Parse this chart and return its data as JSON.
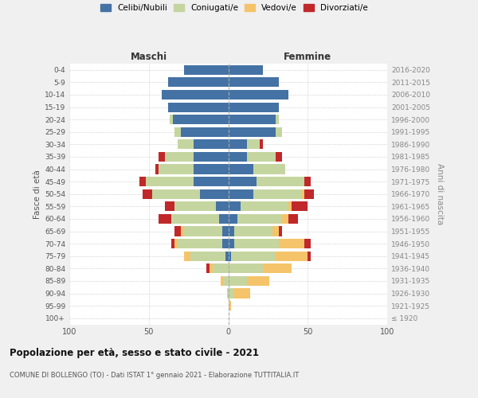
{
  "age_groups": [
    "100+",
    "95-99",
    "90-94",
    "85-89",
    "80-84",
    "75-79",
    "70-74",
    "65-69",
    "60-64",
    "55-59",
    "50-54",
    "45-49",
    "40-44",
    "35-39",
    "30-34",
    "25-29",
    "20-24",
    "15-19",
    "10-14",
    "5-9",
    "0-4"
  ],
  "birth_years": [
    "≤ 1920",
    "1921-1925",
    "1926-1930",
    "1931-1935",
    "1936-1940",
    "1941-1945",
    "1946-1950",
    "1951-1955",
    "1956-1960",
    "1961-1965",
    "1966-1970",
    "1971-1975",
    "1976-1980",
    "1981-1985",
    "1986-1990",
    "1991-1995",
    "1996-2000",
    "2001-2005",
    "2006-2010",
    "2011-2015",
    "2016-2020"
  ],
  "maschi": {
    "celibi": [
      0,
      0,
      0,
      0,
      0,
      2,
      4,
      4,
      6,
      8,
      18,
      22,
      22,
      22,
      22,
      30,
      35,
      38,
      42,
      38,
      28
    ],
    "coniugati": [
      0,
      0,
      1,
      3,
      10,
      22,
      28,
      24,
      30,
      26,
      30,
      30,
      22,
      18,
      10,
      4,
      2,
      0,
      0,
      0,
      0
    ],
    "vedovi": [
      0,
      0,
      0,
      2,
      2,
      4,
      2,
      2,
      0,
      0,
      0,
      0,
      0,
      0,
      0,
      0,
      0,
      0,
      0,
      0,
      0
    ],
    "divorziati": [
      0,
      0,
      0,
      0,
      2,
      0,
      2,
      4,
      8,
      6,
      6,
      4,
      2,
      4,
      0,
      0,
      0,
      0,
      0,
      0,
      0
    ]
  },
  "femmine": {
    "nubili": [
      0,
      0,
      0,
      0,
      0,
      2,
      4,
      4,
      6,
      8,
      16,
      18,
      16,
      12,
      12,
      30,
      30,
      32,
      38,
      32,
      22
    ],
    "coniugate": [
      0,
      0,
      4,
      12,
      22,
      28,
      28,
      24,
      28,
      30,
      30,
      30,
      20,
      18,
      8,
      4,
      2,
      0,
      0,
      0,
      0
    ],
    "vedove": [
      0,
      2,
      10,
      14,
      18,
      20,
      16,
      4,
      4,
      2,
      2,
      0,
      0,
      0,
      0,
      0,
      0,
      0,
      0,
      0,
      0
    ],
    "divorziate": [
      0,
      0,
      0,
      0,
      0,
      2,
      4,
      2,
      6,
      10,
      6,
      4,
      0,
      4,
      2,
      0,
      0,
      0,
      0,
      0,
      0
    ]
  },
  "colors": {
    "celibi": "#4472A4",
    "coniugati": "#c5d5a0",
    "vedovi": "#f5c46a",
    "divorziati": "#c0282a"
  },
  "xlim": 100,
  "title": "Popolazione per età, sesso e stato civile - 2021",
  "subtitle": "COMUNE DI BOLLENGO (TO) - Dati ISTAT 1° gennaio 2021 - Elaborazione TUTTITALIA.IT",
  "xlabel_left": "Maschi",
  "xlabel_right": "Femmine",
  "ylabel_left": "Fasce di età",
  "ylabel_right": "Anni di nascita",
  "bg_color": "#f0f0f0",
  "plot_bg": "#ffffff"
}
